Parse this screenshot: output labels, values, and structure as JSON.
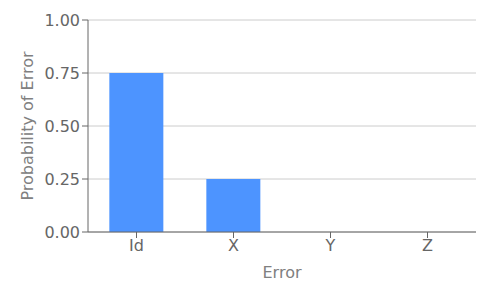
{
  "chart_data": {
    "type": "bar",
    "categories": [
      "Id",
      "X",
      "Y",
      "Z"
    ],
    "values": [
      0.75,
      0.25,
      0.0,
      0.0
    ],
    "color": "#4d94ff",
    "xlabel": "Error",
    "ylabel": "Probability of Error",
    "ylim": [
      0.0,
      1.0
    ],
    "yticks": [
      {
        "value": 0.0,
        "label": "0.00"
      },
      {
        "value": 0.25,
        "label": "0.25"
      },
      {
        "value": 0.5,
        "label": "0.50"
      },
      {
        "value": 0.75,
        "label": "0.75"
      },
      {
        "value": 1.0,
        "label": "1.00"
      }
    ],
    "grid": true
  }
}
